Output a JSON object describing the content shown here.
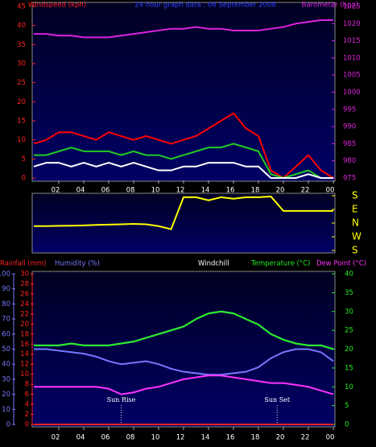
{
  "chart_data": [
    {
      "type": "line",
      "title": "24 hour graph data : 06 September 2008",
      "ylabel": "Windspeed (kph)",
      "y2label": "Barometer (hpa)",
      "x": [
        0,
        1,
        2,
        3,
        4,
        5,
        6,
        7,
        8,
        9,
        10,
        11,
        12,
        13,
        14,
        15,
        16,
        17,
        18,
        19,
        20,
        21,
        22,
        23,
        24
      ],
      "xlim": [
        0,
        24
      ],
      "xticks": [
        {
          "value": 2,
          "label": "02"
        },
        {
          "value": 4,
          "label": "04"
        },
        {
          "value": 6,
          "label": "06"
        },
        {
          "value": 8,
          "label": "08"
        },
        10,
        12,
        14,
        16,
        18,
        20,
        22,
        {
          "value": 24,
          "label": "00"
        }
      ],
      "ylim": [
        0,
        45
      ],
      "yticks": [
        0,
        5,
        10,
        15,
        20,
        25,
        30,
        35,
        40,
        45
      ],
      "y2lim": [
        975,
        1025
      ],
      "y2ticks": [
        975,
        980,
        985,
        990,
        995,
        1000,
        1005,
        1010,
        1015,
        1020,
        1025
      ],
      "grid": false,
      "series": [
        {
          "color": "#ff0000",
          "axis": "y",
          "values": [
            9,
            10,
            12,
            12,
            11,
            10,
            12,
            11,
            10,
            11,
            10,
            9,
            10,
            11,
            13,
            15,
            17,
            13,
            11,
            2,
            0,
            3,
            6,
            2,
            0
          ]
        },
        {
          "color": "#22cc22",
          "axis": "y",
          "values": [
            6,
            6,
            7,
            8,
            7,
            7,
            7,
            6,
            7,
            6,
            6,
            5,
            6,
            7,
            8,
            8,
            9,
            8,
            7,
            1,
            0,
            1,
            2,
            0,
            0
          ]
        },
        {
          "color": "#ffffff",
          "axis": "y",
          "values": [
            3,
            4,
            4,
            3,
            4,
            3,
            4,
            3,
            4,
            3,
            2,
            2,
            3,
            3,
            4,
            4,
            4,
            3,
            3,
            0,
            0,
            0,
            1,
            0,
            0
          ]
        },
        {
          "color": "#dd22dd",
          "axis": "y2",
          "values": [
            1017,
            1017,
            1016.5,
            1016.5,
            1016,
            1016,
            1016,
            1016.5,
            1017,
            1017.5,
            1018,
            1018.5,
            1018.5,
            1019,
            1018.5,
            1018.5,
            1018,
            1018,
            1018,
            1018.5,
            1019,
            1020,
            1020.5,
            1021,
            1021
          ]
        }
      ]
    },
    {
      "type": "line",
      "x": [
        0,
        1,
        2,
        3,
        4,
        5,
        6,
        7,
        8,
        9,
        10,
        11,
        12,
        13,
        14,
        15,
        16,
        17,
        18,
        19,
        20,
        21,
        22,
        23,
        24
      ],
      "xlim": [
        0,
        24
      ],
      "ylim": [
        -180,
        180
      ],
      "yticks": [
        {
          "value": 180,
          "label": "S"
        },
        {
          "value": 90,
          "label": "E"
        },
        {
          "value": 0,
          "label": "N"
        },
        {
          "value": -90,
          "label": "W"
        },
        {
          "value": -180,
          "label": "S"
        }
      ],
      "series": [
        {
          "color": "#ffff00",
          "axis": "y",
          "values": [
            -20,
            -20,
            -18,
            -17,
            -15,
            -12,
            -10,
            -8,
            -5,
            -8,
            -20,
            -40,
            170,
            170,
            150,
            170,
            160,
            170,
            170,
            175,
            80,
            80,
            80,
            80,
            80
          ]
        }
      ]
    },
    {
      "type": "line",
      "x": [
        0,
        1,
        2,
        3,
        4,
        5,
        6,
        7,
        8,
        9,
        10,
        11,
        12,
        13,
        14,
        15,
        16,
        17,
        18,
        19,
        20,
        21,
        22,
        23,
        24
      ],
      "xlim": [
        0,
        24
      ],
      "xticks": [
        {
          "value": 2,
          "label": "02"
        },
        {
          "value": 4,
          "label": "04"
        },
        {
          "value": 6,
          "label": "06"
        },
        {
          "value": 8,
          "label": "08"
        },
        10,
        12,
        14,
        16,
        18,
        20,
        22,
        {
          "value": 24,
          "label": "00"
        }
      ],
      "ylim": [
        0,
        100
      ],
      "yticks": [
        0,
        10,
        20,
        30,
        40,
        50,
        60,
        70,
        80,
        90,
        100
      ],
      "y2lim": [
        0,
        40
      ],
      "y2ticks": [
        0,
        5,
        10,
        15,
        20,
        25,
        30,
        35,
        40
      ],
      "y3lim": [
        0,
        30
      ],
      "y3ticks": [
        0,
        2,
        4,
        6,
        8,
        10,
        12,
        14,
        16,
        18,
        20,
        22,
        24,
        26,
        28,
        30
      ],
      "series": [
        {
          "name": "Rainfall (mm)",
          "color": "#ff2222",
          "axis": "y3",
          "values": [
            0,
            0,
            0,
            0,
            0,
            0,
            0,
            0,
            0,
            0,
            0,
            0,
            0,
            0,
            0,
            0,
            0,
            0,
            0,
            0,
            0,
            0,
            0,
            0,
            0
          ]
        },
        {
          "name": "Humidity (%)",
          "color": "#7777ff",
          "axis": "y",
          "values": [
            50,
            50,
            49,
            48,
            47,
            45,
            42,
            40,
            41,
            42,
            40,
            37,
            35,
            34,
            33,
            33,
            34,
            35,
            38,
            44,
            48,
            50,
            50,
            48,
            42
          ]
        },
        {
          "name": "Windchill",
          "color": "#ffffff",
          "axis": "y2",
          "values": [
            21,
            21,
            21,
            21.5,
            21,
            21,
            21,
            21.5,
            22,
            23,
            24,
            25,
            26,
            28,
            29.5,
            30,
            29.5,
            28,
            26.5,
            24,
            22.5,
            21.5,
            21,
            21,
            20
          ]
        },
        {
          "name": "Temperature (°C)",
          "color": "#22ee22",
          "axis": "y2",
          "values": [
            21,
            21,
            21,
            21.5,
            21,
            21,
            21,
            21.5,
            22,
            23,
            24,
            25,
            26,
            28,
            29.5,
            30,
            29.5,
            28,
            26.5,
            24,
            22.5,
            21.5,
            21,
            21,
            20
          ]
        },
        {
          "name": "Dew Point (°C)",
          "color": "#ff33ff",
          "axis": "y2",
          "values": [
            10,
            10,
            10,
            10,
            10,
            10,
            9.5,
            8,
            8.5,
            9.5,
            10,
            11,
            12,
            12.5,
            13,
            13,
            12.5,
            12,
            11.5,
            11,
            11,
            10.5,
            10,
            9,
            8
          ]
        }
      ],
      "annotations": [
        {
          "text": "Sun Rise",
          "x": 7
        },
        {
          "text": "Sun Set",
          "x": 19.5
        }
      ]
    }
  ]
}
